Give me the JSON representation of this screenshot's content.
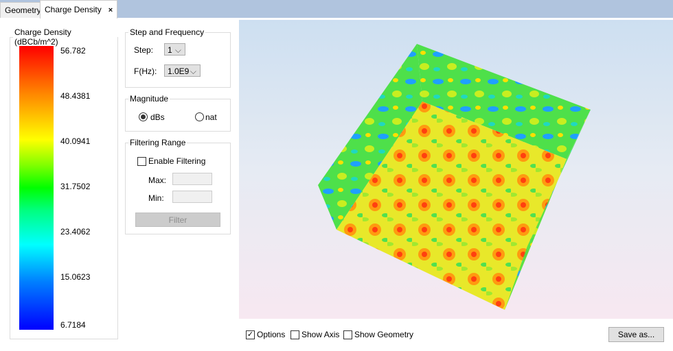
{
  "tabs": [
    {
      "label": "Geometry",
      "active": false
    },
    {
      "label": "Charge Density",
      "active": true,
      "close": "×"
    }
  ],
  "legend": {
    "title": "Charge Density (dBCb/m^2)",
    "ticks": [
      "56.782",
      "48.4381",
      "40.0941",
      "31.7502",
      "23.4062",
      "15.0623",
      "6.7184"
    ],
    "colormap": [
      "#ff0000",
      "#ffff00",
      "#00ff00",
      "#00ffff",
      "#0000ff"
    ]
  },
  "step_freq": {
    "title": "Step and Frequency",
    "step_label": "Step:",
    "step_value": "1",
    "freq_label": "F(Hz):",
    "freq_value": "1.0E9"
  },
  "magnitude": {
    "title": "Magnitude",
    "options": [
      {
        "label": "dBs",
        "selected": true
      },
      {
        "label": "nat",
        "selected": false
      }
    ]
  },
  "filtering": {
    "title": "Filtering Range",
    "enable_label": "Enable Filtering",
    "enabled": false,
    "max_label": "Max:",
    "max_value": "",
    "min_label": "Min:",
    "min_value": "",
    "filter_button": "Filter"
  },
  "bottom": {
    "options_label": "Options",
    "options_checked": true,
    "axis_label": "Show Axis",
    "axis_checked": false,
    "geometry_label": "Show Geometry",
    "geometry_checked": false,
    "save_button": "Save as..."
  }
}
